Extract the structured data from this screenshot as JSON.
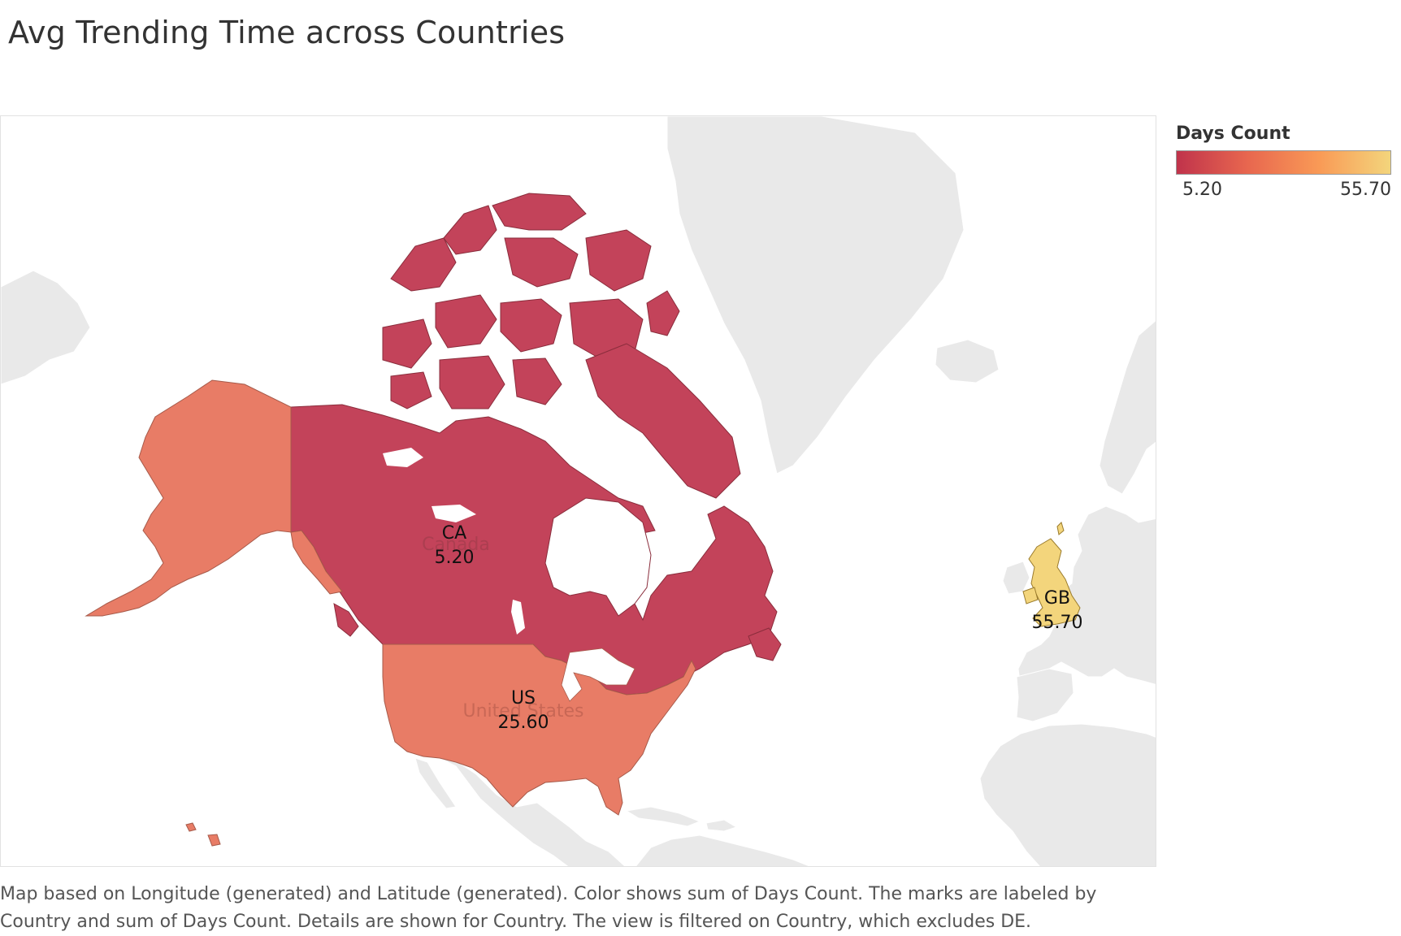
{
  "title": "Avg Trending Time across Countries",
  "legend": {
    "title": "Days Count",
    "min_label": "5.20",
    "max_label": "55.70",
    "min": 5.2,
    "max": 55.7,
    "colors": [
      "#c0334b",
      "#e8674f",
      "#f99a56",
      "#f3d57c"
    ]
  },
  "map": {
    "countries": [
      {
        "code": "CA",
        "name": "Canada",
        "value_label": "5.20",
        "value": 5.2,
        "color": "#c3435a"
      },
      {
        "code": "US",
        "name": "United States",
        "value_label": "25.60",
        "value": 25.6,
        "color": "#e87c66"
      },
      {
        "code": "GB",
        "name": "",
        "value_label": "55.70",
        "value": 55.7,
        "color": "#f3d57c"
      }
    ],
    "base_land_color": "#e8e8e8"
  },
  "caption": "Map based on Longitude (generated) and Latitude (generated).  Color shows sum of Days Count.  The marks are labeled by Country and sum of Days Count.  Details are shown for Country. The view is filtered on Country, which excludes DE."
}
